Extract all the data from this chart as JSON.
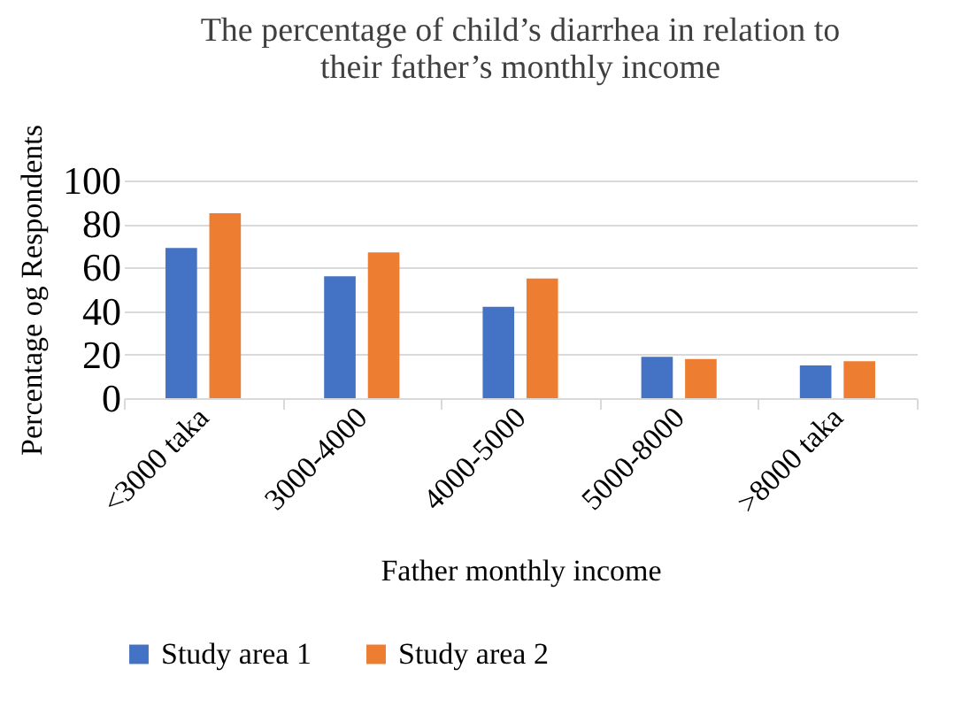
{
  "chart_data": {
    "type": "bar",
    "title": "The percentage of child’s diarrhea in relation to their father’s monthly income",
    "xlabel": "Father monthly income",
    "ylabel": "Percentage og Respondents",
    "categories": [
      "<3000 taka",
      "3000-4000",
      "4000-5000",
      "5000-8000",
      ">8000 taka"
    ],
    "series": [
      {
        "name": "Study area 1",
        "color": "#4472c4",
        "values": [
          69,
          56,
          42,
          19,
          15
        ]
      },
      {
        "name": "Study area 2",
        "color": "#ed7d31",
        "values": [
          85,
          67,
          55,
          18,
          17
        ]
      }
    ],
    "ylim": [
      0,
      100
    ],
    "yticks": [
      0,
      20,
      40,
      60,
      80,
      100
    ],
    "grid": "y",
    "legend": "bottom"
  }
}
